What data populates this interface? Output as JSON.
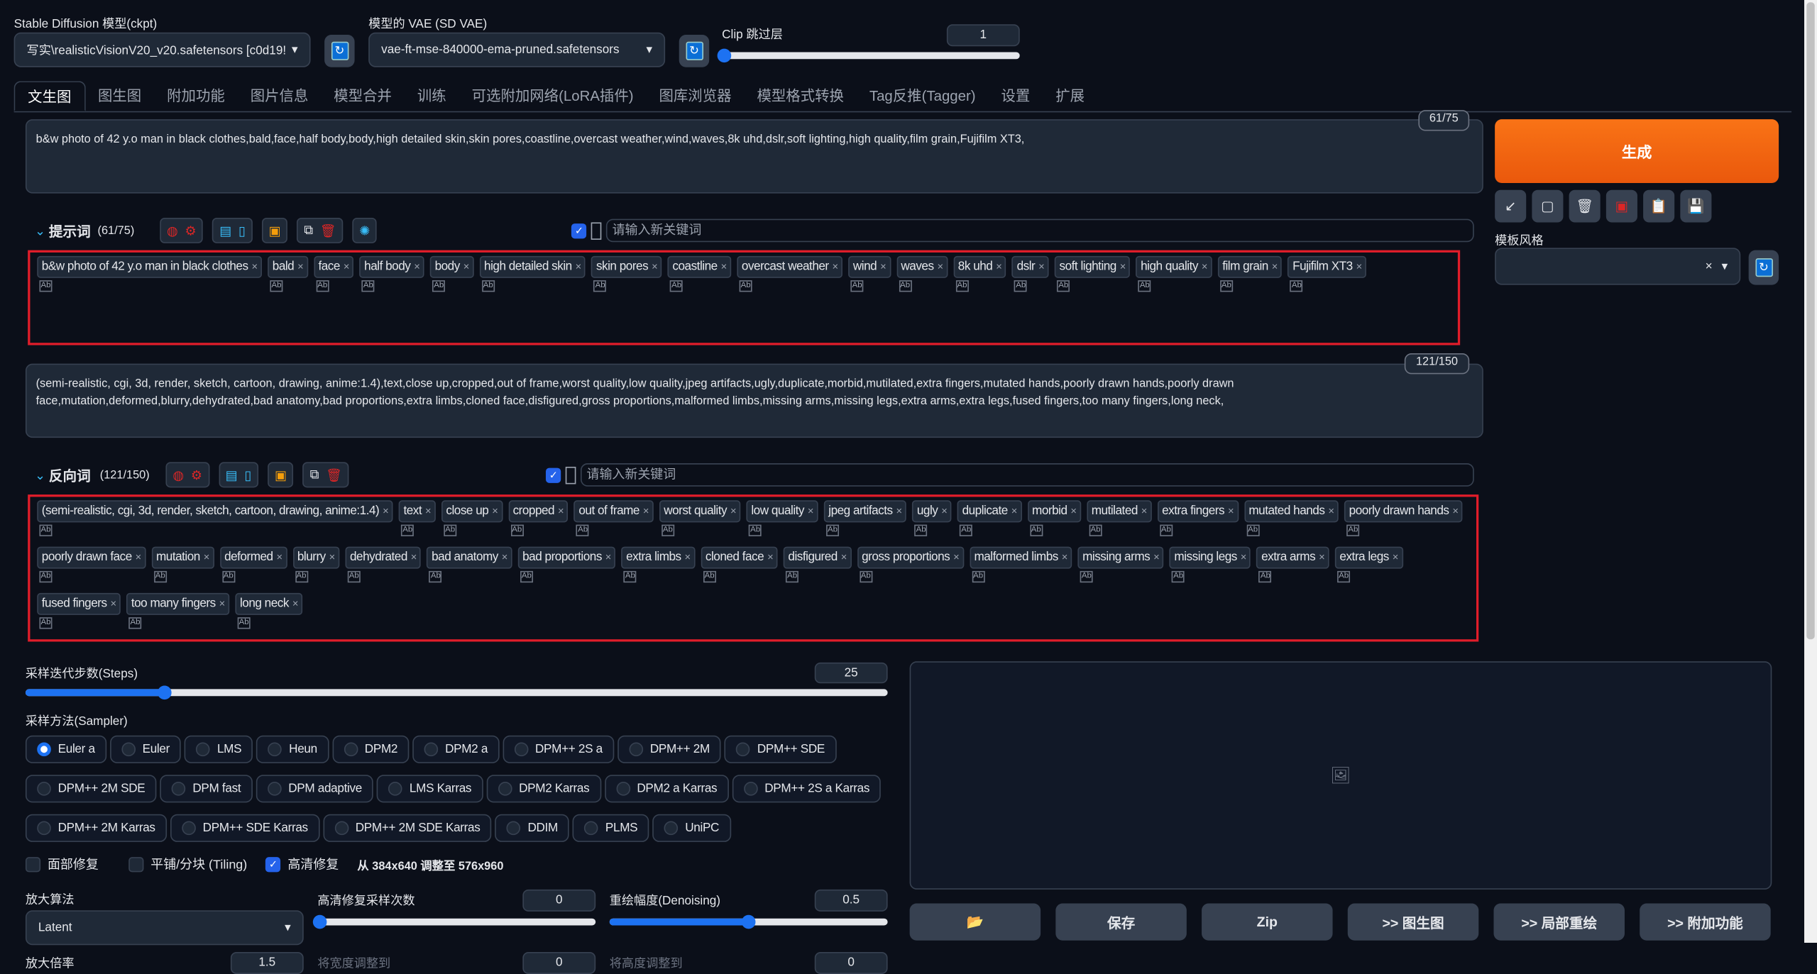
{
  "top": {
    "ckpt_label": "Stable Diffusion 模型(ckpt)",
    "ckpt_value": "写实\\realisticVisionV20_v20.safetensors [c0d19!",
    "vae_label": "模型的 VAE (SD VAE)",
    "vae_value": "vae-ft-mse-840000-ema-pruned.safetensors",
    "clip_label": "Clip 跳过层",
    "clip_value": "1",
    "clip_fraction": 0
  },
  "tabs": [
    "文生图",
    "图生图",
    "附加功能",
    "图片信息",
    "模型合并",
    "训练",
    "可选附加网络(LoRA插件)",
    "图库浏览器",
    "模型格式转换",
    "Tag反推(Tagger)",
    "设置",
    "扩展"
  ],
  "prompt": {
    "text": "b&w photo of 42 y.o man in black clothes,bald,face,half body,body,high detailed skin,skin pores,coastline,overcast weather,wind,waves,8k uhd,dslr,soft lighting,high quality,film grain,Fujifilm XT3,",
    "counter": "61/75",
    "helper_title": "提示词",
    "helper_count": "(61/75)",
    "input_placeholder": "请输入新关键词",
    "tags": [
      "b&w photo of 42 y.o man in black clothes",
      "bald",
      "face",
      "half body",
      "body",
      "high detailed skin",
      "skin pores",
      "coastline",
      "overcast weather",
      "wind",
      "waves",
      "8k uhd",
      "dslr",
      "soft lighting",
      "high quality",
      "film grain",
      "Fujifilm XT3"
    ]
  },
  "negative": {
    "text": "(semi-realistic, cgi, 3d, render, sketch, cartoon, drawing, anime:1.4),text,close up,cropped,out of frame,worst quality,low quality,jpeg artifacts,ugly,duplicate,morbid,mutilated,extra fingers,mutated hands,poorly drawn hands,poorly drawn face,mutation,deformed,blurry,dehydrated,bad anatomy,bad proportions,extra limbs,cloned face,disfigured,gross proportions,malformed limbs,missing arms,missing legs,extra arms,extra legs,fused fingers,too many fingers,long neck,",
    "counter": "121/150",
    "helper_title": "反向词",
    "helper_count": "(121/150)",
    "input_placeholder": "请输入新关键词",
    "tags": [
      "(semi-realistic, cgi, 3d, render, sketch, cartoon, drawing, anime:1.4)",
      "text",
      "close up",
      "cropped",
      "out of frame",
      "worst quality",
      "low quality",
      "jpeg artifacts",
      "ugly",
      "duplicate",
      "morbid",
      "mutilated",
      "extra fingers",
      "mutated hands",
      "poorly drawn hands",
      "poorly drawn face",
      "mutation",
      "deformed",
      "blurry",
      "dehydrated",
      "bad anatomy",
      "bad proportions",
      "extra limbs",
      "cloned face",
      "disfigured",
      "gross proportions",
      "malformed limbs",
      "missing arms",
      "missing legs",
      "extra arms",
      "extra legs",
      "fused fingers",
      "too many fingers",
      "long neck"
    ]
  },
  "generate": {
    "label": "生成",
    "color": "#ea580c",
    "style_label": "模板风格",
    "style_clear": "×"
  },
  "tools": [
    "arrow-icon",
    "square-icon",
    "trash-icon",
    "red-card-icon",
    "clipboard-icon",
    "save-icon"
  ],
  "steps": {
    "label": "采样迭代步数(Steps)",
    "value": "25",
    "min": 1,
    "max": 150
  },
  "sampler": {
    "label": "采样方法(Sampler)",
    "selected": "Euler a",
    "options": [
      "Euler a",
      "Euler",
      "LMS",
      "Heun",
      "DPM2",
      "DPM2 a",
      "DPM++ 2S a",
      "DPM++ 2M",
      "DPM++ SDE",
      "DPM++ 2M SDE",
      "DPM fast",
      "DPM adaptive",
      "LMS Karras",
      "DPM2 Karras",
      "DPM2 a Karras",
      "DPM++ 2S a Karras",
      "DPM++ 2M Karras",
      "DPM++ SDE Karras",
      "DPM++ 2M SDE Karras",
      "DDIM",
      "PLMS",
      "UniPC"
    ]
  },
  "options": {
    "face": "面部修复",
    "tiling": "平铺/分块 (Tiling)",
    "hires": "高清修复",
    "hires_checked": true,
    "resize_note": "从 384x640 调整至 576x960"
  },
  "hires": {
    "upscaler_label": "放大算法",
    "upscaler_value": "Latent",
    "steps_label": "高清修复采样次数",
    "steps_value": "0",
    "steps_fraction": 0,
    "denoise_label": "重绘幅度(Denoising)",
    "denoise_value": "0.5",
    "denoise_fraction": 0.5,
    "scale_label": "放大倍率",
    "scale_value": "1.5",
    "width_label": "将宽度调整到",
    "width_value": "0",
    "height_label": "将高度调整到",
    "height_value": "0"
  },
  "output": {
    "buttons": [
      "📂",
      "保存",
      "Zip",
      ">> 图生图",
      ">> 局部重绘",
      ">> 附加功能"
    ]
  }
}
